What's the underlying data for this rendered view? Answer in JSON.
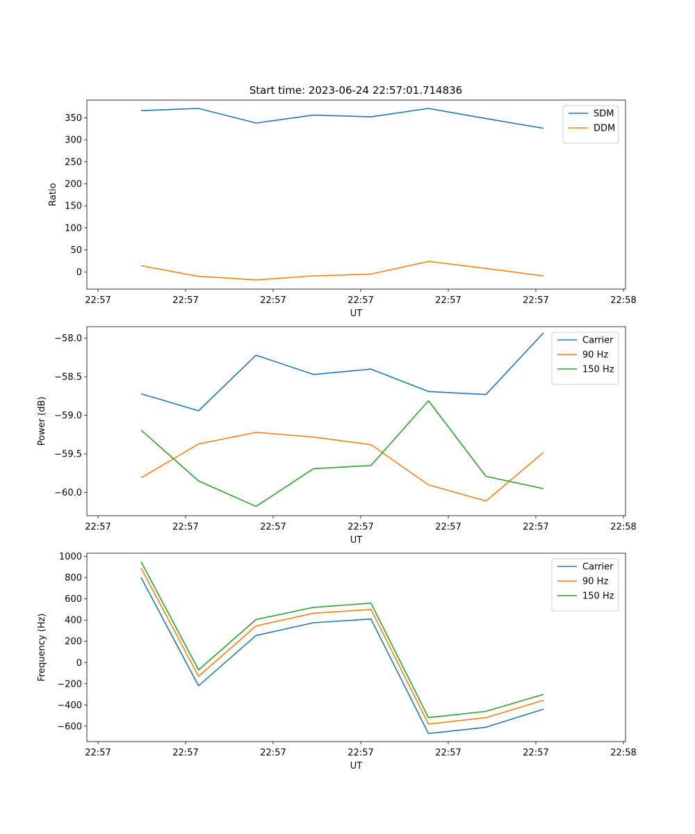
{
  "figure_title": "Start time: 2023-06-24 22:57:01.714836",
  "chart_data": [
    {
      "type": "line",
      "xlabel": "UT",
      "ylabel": "Ratio",
      "x_tick_labels": [
        "22:57",
        "22:57",
        "22:57",
        "22:57",
        "22:57",
        "22:57",
        "22:58"
      ],
      "y_ticks": [
        0,
        50,
        100,
        150,
        200,
        250,
        300,
        350
      ],
      "ylim": [
        -39,
        390
      ],
      "x_points": 8,
      "legend_position": "top-right",
      "series": [
        {
          "name": "SDM",
          "color": "#1f77b4",
          "values": [
            366,
            371,
            338,
            356,
            352,
            371,
            348,
            326
          ]
        },
        {
          "name": "DDM",
          "color": "#ff7f0e",
          "values": [
            14,
            -10,
            -18,
            -9,
            -5,
            24,
            8,
            -9
          ]
        }
      ]
    },
    {
      "type": "line",
      "xlabel": "UT",
      "ylabel": "Power (dB)",
      "x_tick_labels": [
        "22:57",
        "22:57",
        "22:57",
        "22:57",
        "22:57",
        "22:57",
        "22:58"
      ],
      "y_ticks": [
        -60.0,
        -59.5,
        -59.0,
        -58.5,
        -58.0
      ],
      "y_tick_labels": [
        "−60.0",
        "−59.5",
        "−59.0",
        "−58.5",
        "−58.0"
      ],
      "ylim": [
        -60.3,
        -57.85
      ],
      "x_points": 8,
      "legend_position": "top-right",
      "series": [
        {
          "name": "Carrier",
          "color": "#1f77b4",
          "values": [
            -58.72,
            -58.94,
            -58.22,
            -58.47,
            -58.4,
            -58.69,
            -58.73,
            -57.93
          ]
        },
        {
          "name": "90 Hz",
          "color": "#ff7f0e",
          "values": [
            -59.81,
            -59.37,
            -59.22,
            -59.28,
            -59.38,
            -59.9,
            -60.11,
            -59.48
          ]
        },
        {
          "name": "150 Hz",
          "color": "#2ca02c",
          "values": [
            -59.19,
            -59.85,
            -60.18,
            -59.69,
            -59.65,
            -58.81,
            -59.79,
            -59.95
          ]
        }
      ]
    },
    {
      "type": "line",
      "xlabel": "UT",
      "ylabel": "Frequency (Hz)",
      "x_tick_labels": [
        "22:57",
        "22:57",
        "22:57",
        "22:57",
        "22:57",
        "22:57",
        "22:58"
      ],
      "y_ticks": [
        -600,
        -400,
        -200,
        0,
        200,
        400,
        600,
        800,
        1000
      ],
      "y_tick_labels": [
        "−600",
        "−400",
        "−200",
        "0",
        "200",
        "400",
        "600",
        "800",
        "1000"
      ],
      "ylim": [
        -745,
        1030
      ],
      "x_points": 8,
      "legend_position": "top-right",
      "series": [
        {
          "name": "Carrier",
          "color": "#1f77b4",
          "values": [
            800,
            -220,
            255,
            375,
            410,
            -670,
            -610,
            -440
          ]
        },
        {
          "name": "90 Hz",
          "color": "#ff7f0e",
          "values": [
            890,
            -130,
            345,
            465,
            500,
            -580,
            -520,
            -355
          ]
        },
        {
          "name": "150 Hz",
          "color": "#2ca02c",
          "values": [
            950,
            -70,
            405,
            520,
            560,
            -520,
            -460,
            -300
          ]
        }
      ]
    }
  ]
}
